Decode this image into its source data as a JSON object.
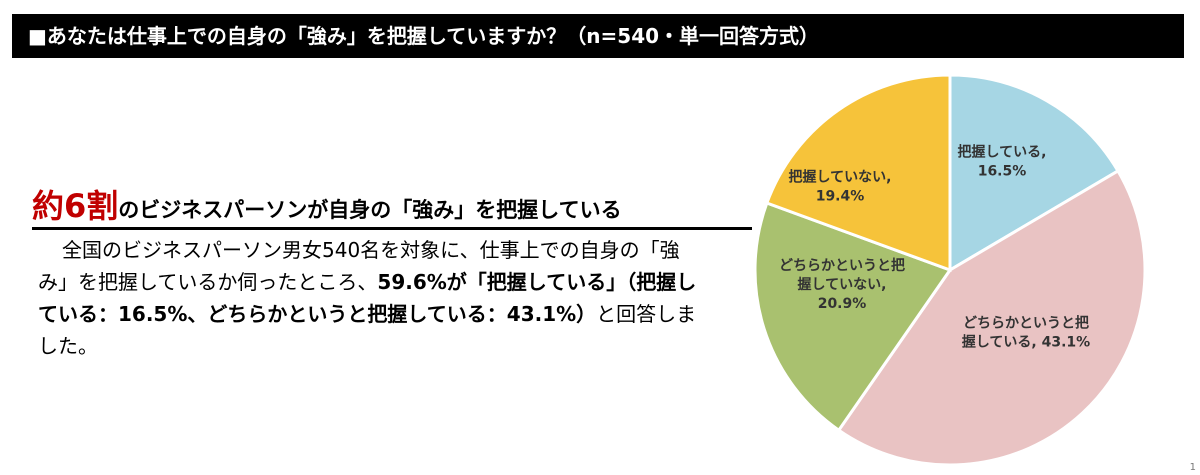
{
  "header": {
    "title": "■あなたは仕事上での自身の「強み」を把握していますか？（n=540・単一回答方式）"
  },
  "headline": {
    "accent": "約6割",
    "rest": "のビジネスパーソンが自身の「強み」を把握している"
  },
  "body": {
    "part1": "全国のビジネスパーソン男女540名を対象に、仕事上での自身の「強み」を把握しているか伺ったところ、",
    "part2": "59.6%が「把握している」（把握している：16.5%、どちらかというと把握している：43.1%）",
    "part3": "と回答しました。"
  },
  "chart_data": {
    "type": "pie",
    "title": "あなたは仕事上での自身の「強み」を把握していますか？（n=540・単一回答方式）",
    "slices": [
      {
        "lines": [
          "把握している,",
          "16.5%"
        ],
        "value": 16.5,
        "color": "#a6d6e4"
      },
      {
        "lines": [
          "どちらかというと把",
          "握している, 43.1%"
        ],
        "value": 43.1,
        "color": "#e9c3c3"
      },
      {
        "lines": [
          "どちらかというと把",
          "握していない,",
          "20.9%"
        ],
        "value": 20.9,
        "color": "#a9c16f"
      },
      {
        "lines": [
          "把握していない,",
          "19.4%"
        ],
        "value": 19.4,
        "color": "#f6c33a"
      }
    ]
  }
}
